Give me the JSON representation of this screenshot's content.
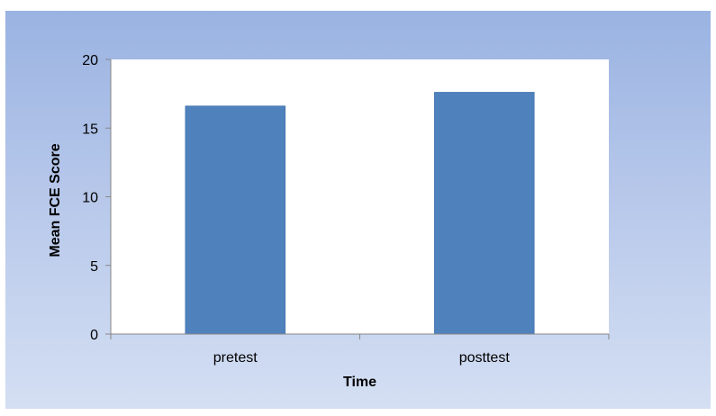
{
  "chart_data": {
    "type": "bar",
    "categories": [
      "pretest",
      "posttest"
    ],
    "values": [
      16.6,
      17.6
    ],
    "title": "",
    "xlabel": "Time",
    "ylabel": "Mean FCE Score",
    "ylim": [
      0,
      20
    ],
    "yticks": [
      0,
      5,
      10,
      15,
      20
    ],
    "grid": false,
    "legend": "none",
    "colors": {
      "bar": "#4f81bd",
      "bar_edge": "#4a7ab4",
      "plot_bg": "#ffffff",
      "axis": "#868686"
    }
  }
}
